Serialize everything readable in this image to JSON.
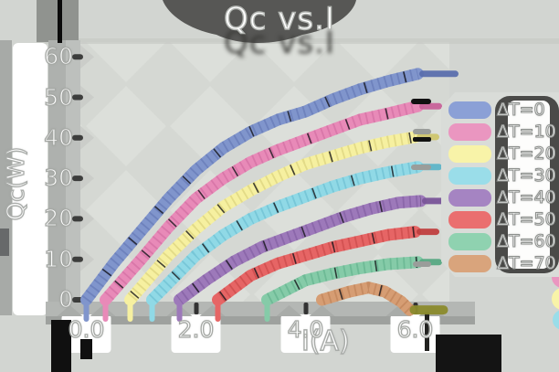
{
  "title": "Qc vs.I",
  "axes": {
    "x_label": "I(A)",
    "y_label": "Qc(W)",
    "x_ticks": [
      "0.0",
      "2.0",
      "4.0",
      "6.0"
    ],
    "y_ticks": [
      "0",
      "10",
      "20",
      "30",
      "40",
      "50",
      "60"
    ]
  },
  "colors": {
    "background": "#d2d5d1",
    "plot_fill": "#d5d8d3",
    "plot_diamond": "#dcdfda",
    "axis_band": "#b4b7b4",
    "ink": "#111111",
    "legend_shadow": "#4a4a48",
    "text": "#ffffff"
  },
  "chart_data": {
    "type": "line",
    "title": "Qc vs.I",
    "xlabel": "I(A)",
    "ylabel": "Qc(W)",
    "xlim": [
      0,
      6.6
    ],
    "ylim": [
      0,
      60
    ],
    "x_ticks": [
      0,
      2,
      4,
      6
    ],
    "y_ticks": [
      0,
      10,
      20,
      30,
      40,
      50,
      60
    ],
    "grid": false,
    "legend_position": "right",
    "style": "hand-drawn hatched marker bands",
    "series": [
      {
        "name": "ΔT=0",
        "color": "#8095cc",
        "dark": "#5b6fae",
        "swatch": "#8ba0d6",
        "tail_len": 36,
        "tail_width": 7,
        "points": [
          [
            0,
            0
          ],
          [
            0.5,
            9
          ],
          [
            1,
            17
          ],
          [
            1.5,
            25
          ],
          [
            2,
            32
          ],
          [
            2.5,
            37.5
          ],
          [
            3,
            41.5
          ],
          [
            3.5,
            44.5
          ],
          [
            4,
            46.5
          ],
          [
            4.5,
            49.5
          ],
          [
            5,
            52
          ],
          [
            5.5,
            54
          ],
          [
            6.05,
            55.8
          ]
        ]
      },
      {
        "name": "ΔT=10",
        "color": "#e88ab8",
        "dark": "#c9639a",
        "swatch": "#ea96c0",
        "points": [
          [
            0.35,
            0
          ],
          [
            1,
            10
          ],
          [
            1.5,
            18
          ],
          [
            2,
            25
          ],
          [
            2.5,
            30
          ],
          [
            3,
            34
          ],
          [
            3.5,
            37
          ],
          [
            4,
            39.5
          ],
          [
            4.5,
            42
          ],
          [
            5,
            44.5
          ],
          [
            5.5,
            46
          ],
          [
            6.05,
            47.8
          ]
        ]
      },
      {
        "name": "ΔT=20",
        "color": "#f6f0a0",
        "dark": "#cfc66e",
        "swatch": "#f8f3a8",
        "points": [
          [
            0.8,
            0
          ],
          [
            1.5,
            11
          ],
          [
            2,
            17.5
          ],
          [
            2.5,
            23
          ],
          [
            3,
            27
          ],
          [
            3.5,
            30.5
          ],
          [
            4,
            33.5
          ],
          [
            4.5,
            35.5
          ],
          [
            5,
            37.5
          ],
          [
            5.5,
            39
          ],
          [
            6,
            40.2
          ]
        ]
      },
      {
        "name": "ΔT=30",
        "color": "#90d9e6",
        "dark": "#5fb6c9",
        "swatch": "#9adde9",
        "points": [
          [
            1.2,
            0
          ],
          [
            2,
            11
          ],
          [
            2.5,
            16
          ],
          [
            3,
            20
          ],
          [
            3.5,
            23
          ],
          [
            4,
            25.5
          ],
          [
            4.5,
            28
          ],
          [
            5,
            30
          ],
          [
            5.5,
            31.5
          ],
          [
            6.05,
            32.8
          ]
        ]
      },
      {
        "name": "ΔT=40",
        "color": "#9d79ba",
        "dark": "#7a5699",
        "swatch": "#a584c2",
        "points": [
          [
            1.7,
            0
          ],
          [
            2.2,
            5
          ],
          [
            2.7,
            9.5
          ],
          [
            3.2,
            13
          ],
          [
            3.7,
            15.5
          ],
          [
            4.2,
            18
          ],
          [
            4.7,
            20.5
          ],
          [
            5.2,
            22.5
          ],
          [
            5.7,
            24
          ],
          [
            6.1,
            24.4
          ]
        ]
      },
      {
        "name": "ΔT=50",
        "color": "#e66565",
        "dark": "#c04040",
        "swatch": "#ea6f6f",
        "points": [
          [
            2.4,
            0
          ],
          [
            3,
            6
          ],
          [
            3.5,
            9
          ],
          [
            4,
            11
          ],
          [
            4.5,
            13
          ],
          [
            5,
            14.5
          ],
          [
            5.5,
            16
          ],
          [
            6,
            16.8
          ]
        ]
      },
      {
        "name": "ΔT=60",
        "color": "#85cba8",
        "dark": "#58a983",
        "swatch": "#8fd2b0",
        "points": [
          [
            3.3,
            0
          ],
          [
            4,
            4.8
          ],
          [
            4.5,
            6.5
          ],
          [
            5,
            7.8
          ],
          [
            5.5,
            8.8
          ],
          [
            6.05,
            9.3
          ]
        ]
      },
      {
        "name": "ΔT=70",
        "color": "#d69d73",
        "dark": "#b57a50",
        "swatch": "#d9a47c",
        "drip": false,
        "tail_color": "#8b8b2d",
        "tail_len": 32,
        "tail_width": 10,
        "points": [
          [
            4.3,
            0
          ],
          [
            4.8,
            2
          ],
          [
            5.15,
            3
          ],
          [
            5.45,
            2
          ],
          [
            5.75,
            -0.5
          ],
          [
            5.9,
            -2.5
          ]
        ]
      }
    ]
  }
}
